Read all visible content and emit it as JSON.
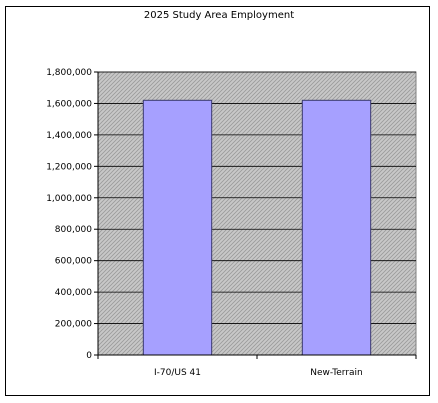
{
  "chart_data": {
    "type": "bar",
    "title": "2025 Study Area Employment",
    "categories": [
      "I-70/US 41",
      "New-Terrain"
    ],
    "values": [
      1620000,
      1620000
    ],
    "ylim": [
      0,
      1800000
    ],
    "yticks": [
      "0",
      "200,000",
      "400,000",
      "600,000",
      "800,000",
      "1,000,000",
      "1,200,000",
      "1,400,000",
      "1,600,000",
      "1,800,000"
    ],
    "xlabel": "",
    "ylabel": "",
    "grid": true,
    "legend": "none",
    "colors": {
      "bar": "#a6a0ff",
      "bar_border": "#3a3a6a",
      "plot_background": "#c0c0c0",
      "gridline": "#000000"
    }
  }
}
